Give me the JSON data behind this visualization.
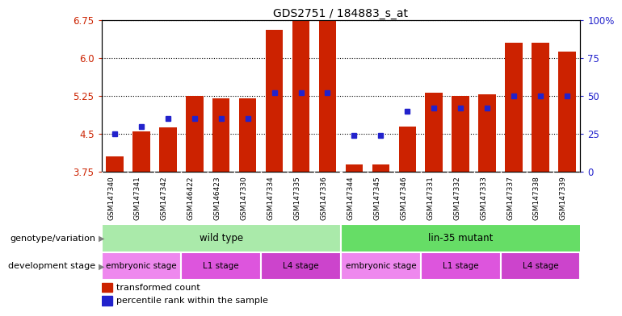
{
  "title": "GDS2751 / 184883_s_at",
  "samples": [
    "GSM147340",
    "GSM147341",
    "GSM147342",
    "GSM146422",
    "GSM146423",
    "GSM147330",
    "GSM147334",
    "GSM147335",
    "GSM147336",
    "GSM147344",
    "GSM147345",
    "GSM147346",
    "GSM147331",
    "GSM147332",
    "GSM147333",
    "GSM147337",
    "GSM147338",
    "GSM147339"
  ],
  "bar_values": [
    4.05,
    4.55,
    4.62,
    5.25,
    5.2,
    5.2,
    6.55,
    6.75,
    6.75,
    3.9,
    3.9,
    4.65,
    5.32,
    5.25,
    5.28,
    6.3,
    6.3,
    6.12
  ],
  "percentile_ranks": [
    25,
    30,
    35,
    35,
    35,
    35,
    52,
    52,
    52,
    24,
    24,
    40,
    42,
    42,
    42,
    50,
    50,
    50
  ],
  "ymin": 3.75,
  "ymax": 6.75,
  "yticks": [
    3.75,
    4.5,
    5.25,
    6.0,
    6.75
  ],
  "bar_color": "#cc2200",
  "dot_color": "#2222cc",
  "background_color": "#ffffff",
  "tick_label_color": "#cc2200",
  "right_axis_color": "#2222cc",
  "right_yticks": [
    0,
    25,
    50,
    75,
    100
  ],
  "right_yticklabels": [
    "0",
    "25",
    "50",
    "75",
    "100%"
  ],
  "xtick_bg": "#cccccc",
  "genotype_wt_color": "#aaeaaa",
  "genotype_mut_color": "#66dd66",
  "stage_embryonic_color": "#ee88ee",
  "stage_l1_color": "#dd55dd",
  "stage_l4_color": "#cc44cc",
  "genotype_groups": [
    {
      "label": "wild type",
      "start": 0,
      "end": 9
    },
    {
      "label": "lin-35 mutant",
      "start": 9,
      "end": 18
    }
  ],
  "stage_groups": [
    {
      "label": "embryonic stage",
      "start": 0,
      "end": 3,
      "color_key": "stage_embryonic_color"
    },
    {
      "label": "L1 stage",
      "start": 3,
      "end": 6,
      "color_key": "stage_l1_color"
    },
    {
      "label": "L4 stage",
      "start": 6,
      "end": 9,
      "color_key": "stage_l4_color"
    },
    {
      "label": "embryonic stage",
      "start": 9,
      "end": 12,
      "color_key": "stage_embryonic_color"
    },
    {
      "label": "L1 stage",
      "start": 12,
      "end": 15,
      "color_key": "stage_l1_color"
    },
    {
      "label": "L4 stage",
      "start": 15,
      "end": 18,
      "color_key": "stage_l4_color"
    }
  ]
}
